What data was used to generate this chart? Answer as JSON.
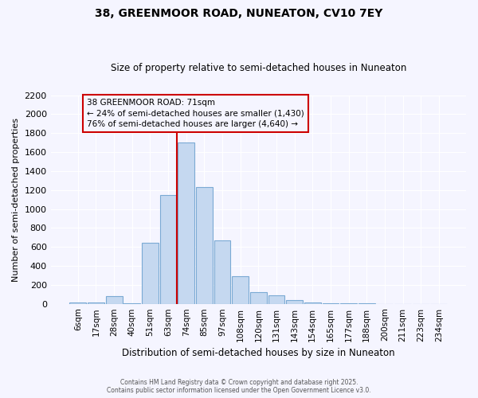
{
  "title": "38, GREENMOOR ROAD, NUNEATON, CV10 7EY",
  "subtitle": "Size of property relative to semi-detached houses in Nuneaton",
  "xlabel": "Distribution of semi-detached houses by size in Nuneaton",
  "ylabel": "Number of semi-detached properties",
  "bin_labels": [
    "6sqm",
    "17sqm",
    "28sqm",
    "40sqm",
    "51sqm",
    "63sqm",
    "74sqm",
    "85sqm",
    "97sqm",
    "108sqm",
    "120sqm",
    "131sqm",
    "143sqm",
    "154sqm",
    "165sqm",
    "177sqm",
    "188sqm",
    "200sqm",
    "211sqm",
    "223sqm",
    "234sqm"
  ],
  "bin_values": [
    15,
    15,
    80,
    5,
    640,
    1150,
    1700,
    1230,
    670,
    295,
    125,
    90,
    40,
    10,
    5,
    3,
    2,
    1,
    0,
    0,
    0
  ],
  "bar_color": "#c5d8f0",
  "bar_edge_color": "#7baad4",
  "vline_color": "#cc0000",
  "annotation_title": "38 GREENMOOR ROAD: 71sqm",
  "annotation_line1": "← 24% of semi-detached houses are smaller (1,430)",
  "annotation_line2": "76% of semi-detached houses are larger (4,640) →",
  "annotation_box_color": "#cc0000",
  "ylim": [
    0,
    2200
  ],
  "yticks": [
    0,
    200,
    400,
    600,
    800,
    1000,
    1200,
    1400,
    1600,
    1800,
    2000,
    2200
  ],
  "background_color": "#f5f5ff",
  "grid_color": "#ffffff",
  "footer1": "Contains HM Land Registry data © Crown copyright and database right 2025.",
  "footer2": "Contains public sector information licensed under the Open Government Licence v3.0."
}
